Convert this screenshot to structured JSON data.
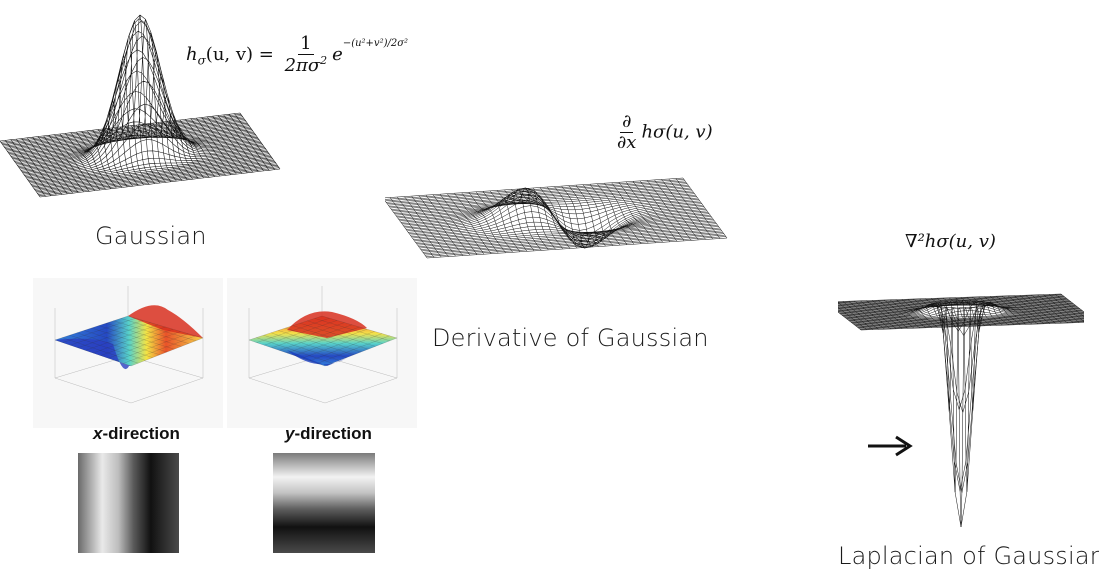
{
  "gaussian": {
    "caption": "Gaussian",
    "formula_lhs": "h",
    "formula_sub": "σ",
    "formula_args": "(u, v) =",
    "formula_num": "1",
    "formula_den": "2πσ",
    "formula_den_exp": "2",
    "formula_e": "e",
    "formula_exp": "−(u²+v²)/2σ²"
  },
  "derivative": {
    "caption": "Derivative of Gaussian",
    "formula_num": "∂",
    "formula_den": "∂x",
    "formula_rest": "hσ(u, v)"
  },
  "laplacian": {
    "caption": "Laplacian of Gaussian",
    "formula": "∇²hσ(u, v)"
  },
  "direction_plots": {
    "x_label_prefix": "x",
    "x_label_suffix": "-direction",
    "y_label_prefix": "y",
    "y_label_suffix": "-direction"
  },
  "arrow_icon": "right-arrow-icon"
}
